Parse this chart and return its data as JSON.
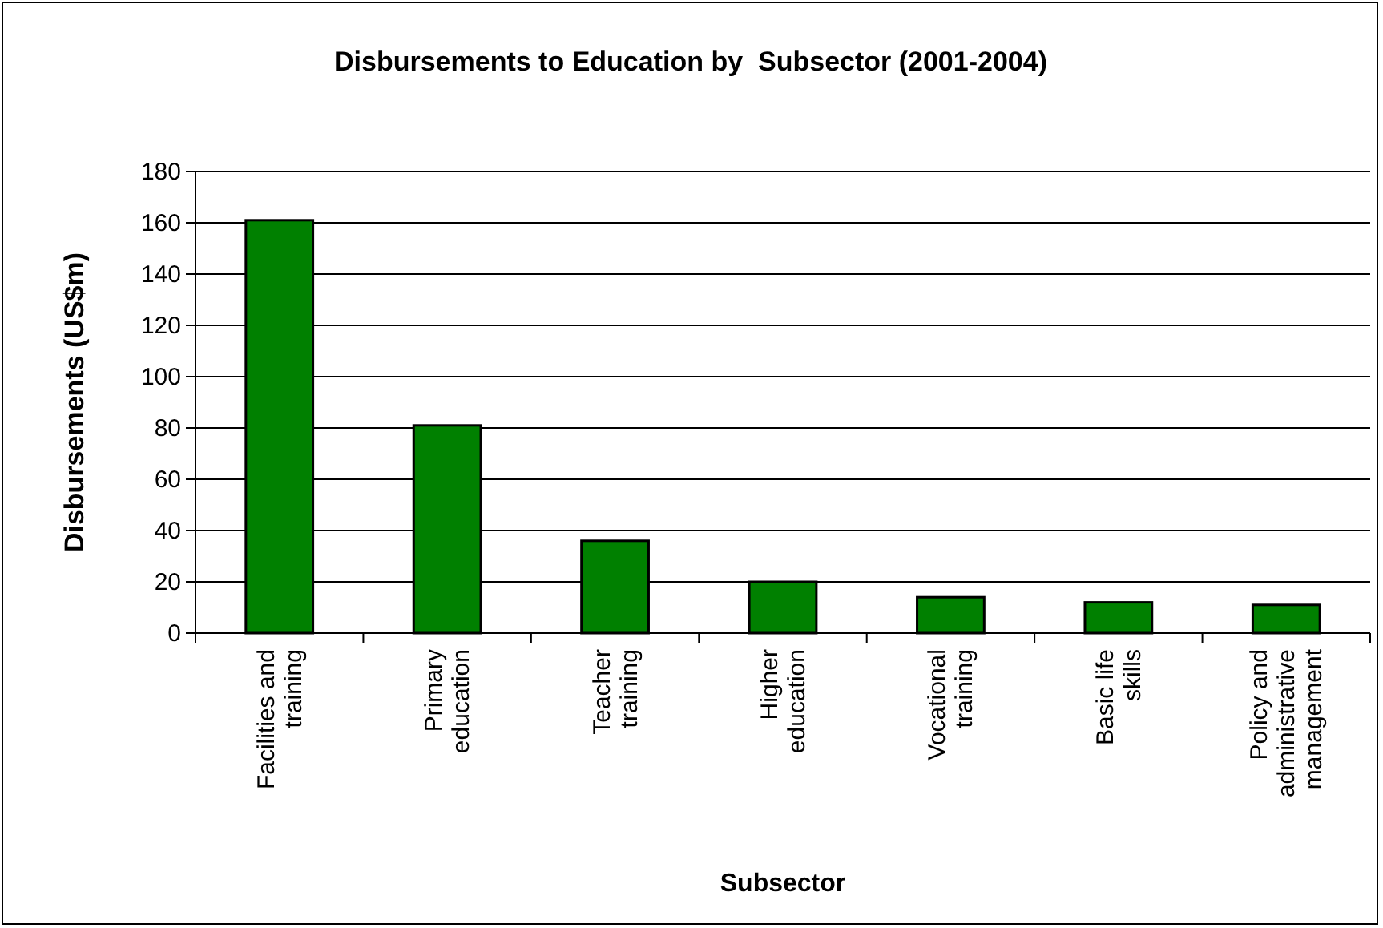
{
  "chart_data": {
    "type": "bar",
    "title": "Disbursements to Education by  Subsector (2001-2004)",
    "xlabel": "Subsector",
    "ylabel": "Disbursements (US$m)",
    "categories": [
      "Facilities and training",
      "Primary education",
      "Teacher training",
      "Higher education",
      "Vocational training",
      "Basic life skills",
      "Policy and administrative management"
    ],
    "values": [
      161,
      81,
      36,
      20,
      14,
      12,
      11
    ],
    "color": "#008000",
    "ylim": [
      0,
      180
    ],
    "yticks": [
      0,
      20,
      40,
      60,
      80,
      100,
      120,
      140,
      160,
      180
    ],
    "grid": "y"
  }
}
